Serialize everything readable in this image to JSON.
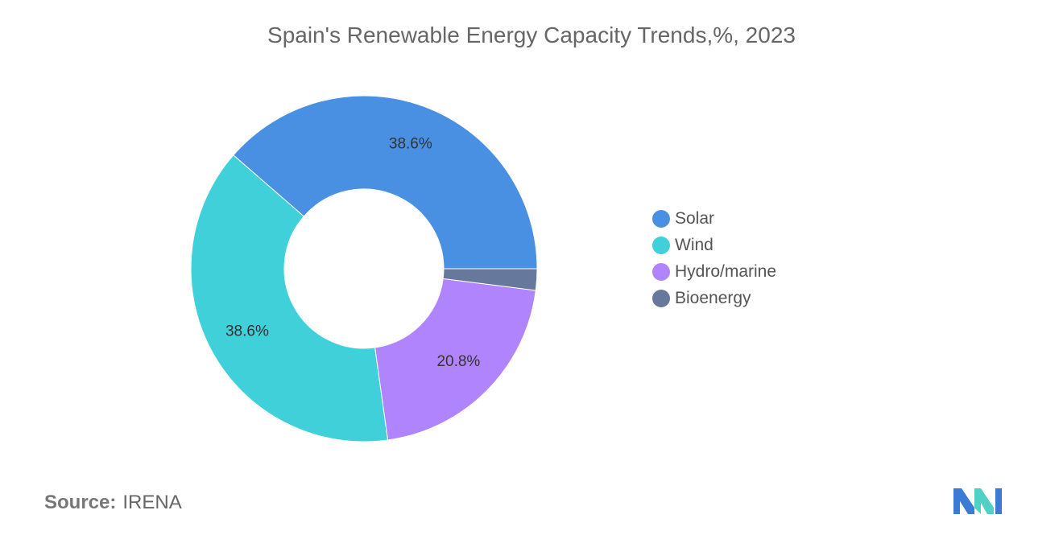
{
  "title": "Spain's Renewable Energy Capacity Trends,%, 2023",
  "source": {
    "label": "Source:",
    "value": "IRENA"
  },
  "chart_data": {
    "type": "pie",
    "variant": "donut",
    "title": "Spain's Renewable Energy Capacity Trends,%, 2023",
    "categories": [
      "Solar",
      "Wind",
      "Hydro/marine",
      "Bioenergy"
    ],
    "values": [
      38.6,
      38.6,
      20.8,
      2.0
    ],
    "data_labels": [
      "38.6%",
      "38.6%",
      "20.8%",
      ""
    ],
    "colors": [
      "#4a90e2",
      "#40d0da",
      "#b084fc",
      "#66789b"
    ],
    "legend_position": "right",
    "start_direction": "counter-clockwise from 3 o'clock (Solar first)"
  },
  "logo": {
    "icon": "mordor-intelligence-logo-icon",
    "colors": [
      "#3a7bd5",
      "#4fd1c5"
    ]
  }
}
